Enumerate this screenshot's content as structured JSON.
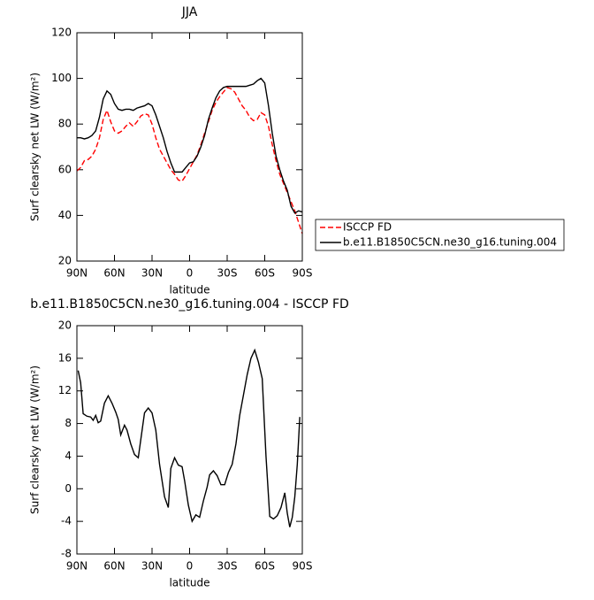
{
  "chart_data": [
    {
      "type": "line",
      "title": "JJA",
      "xlabel": "latitude",
      "ylabel": "Surf clearsky net LW (W/m²)",
      "xlim": [
        90,
        -90
      ],
      "xticks": [
        {
          "value": 90,
          "label": "90N"
        },
        {
          "value": 60,
          "label": "60N"
        },
        {
          "value": 30,
          "label": "30N"
        },
        0,
        {
          "value": -30,
          "label": "30S"
        },
        {
          "value": -60,
          "label": "60S"
        },
        {
          "value": -90,
          "label": "90S"
        }
      ],
      "ylim": [
        20,
        120
      ],
      "yticks": [
        20,
        40,
        60,
        80,
        100,
        120
      ],
      "legend": "right",
      "x": [
        90,
        87,
        84,
        81,
        78,
        75,
        72,
        69,
        66,
        63,
        60,
        57,
        54,
        51,
        48,
        45,
        42,
        39,
        36,
        33,
        30,
        27,
        24,
        21,
        18,
        15,
        12,
        9,
        6,
        3,
        0,
        -3,
        -6,
        -9,
        -12,
        -15,
        -18,
        -21,
        -24,
        -27,
        -30,
        -33,
        -36,
        -39,
        -42,
        -45,
        -48,
        -51,
        -54,
        -57,
        -60,
        -63,
        -66,
        -69,
        -72,
        -75,
        -78,
        -81,
        -84,
        -87,
        -90
      ],
      "series": [
        {
          "name": "ISCCP FD",
          "color": "#ff0000",
          "style": "dashed",
          "values": [
            59.5,
            61,
            64,
            64.5,
            66,
            69,
            74,
            82,
            86,
            81,
            77,
            76,
            77,
            79,
            80.5,
            79,
            81,
            83.5,
            84.5,
            84,
            80,
            74,
            69,
            66,
            63,
            60,
            58,
            55.5,
            55,
            57.5,
            60.5,
            63.5,
            66.5,
            71,
            76,
            81,
            86,
            89.5,
            92,
            94,
            96,
            95.5,
            94,
            91,
            88,
            86,
            83,
            81.5,
            82,
            85,
            84,
            79,
            71,
            64,
            58,
            54,
            50,
            46,
            42,
            37,
            32
          ]
        },
        {
          "name": "b.e11.B1850C5CN.ne30_g16.tuning.004",
          "color": "#000000",
          "style": "solid",
          "values": [
            74,
            74,
            73.5,
            74,
            75,
            77,
            83,
            91,
            94.5,
            93,
            89,
            86.5,
            86,
            86.5,
            86.5,
            86,
            87,
            87.5,
            88,
            89,
            88,
            84,
            79,
            74,
            68,
            63,
            59,
            59,
            59,
            61,
            63,
            63.5,
            66,
            70,
            75,
            82,
            87,
            91.5,
            94.5,
            96,
            96.5,
            96.5,
            96.5,
            96.5,
            96.5,
            96.5,
            97,
            97.5,
            99,
            100,
            98,
            88,
            76,
            66,
            60,
            55,
            51,
            44,
            41,
            42,
            41.5
          ]
        }
      ]
    },
    {
      "type": "line",
      "title": "b.e11.B1850C5CN.ne30_g16.tuning.004 - ISCCP FD",
      "xlabel": "latitude",
      "ylabel": "Surf clearsky net LW (W/m²)",
      "xlim": [
        90,
        -90
      ],
      "xticks": [
        {
          "value": 90,
          "label": "90N"
        },
        {
          "value": 60,
          "label": "60N"
        },
        {
          "value": 30,
          "label": "30N"
        },
        0,
        {
          "value": -30,
          "label": "30S"
        },
        {
          "value": -60,
          "label": "60S"
        },
        {
          "value": -90,
          "label": "90S"
        }
      ],
      "ylim": [
        -8,
        20
      ],
      "yticks": [
        -8,
        -4,
        0,
        4,
        8,
        12,
        16,
        20
      ],
      "x": [
        89,
        87,
        85,
        82,
        79,
        77,
        75,
        73,
        71,
        68,
        65,
        62,
        59,
        57,
        55,
        52,
        50,
        47,
        44,
        41,
        39,
        36,
        33,
        30,
        27,
        24,
        20,
        17,
        15,
        12,
        9,
        6,
        4,
        1,
        -2,
        -5,
        -8,
        -11,
        -14,
        -16,
        -19,
        -22,
        -25,
        -28,
        -31,
        -34,
        -37,
        -40,
        -43,
        -46,
        -49,
        -52,
        -55,
        -58,
        -61,
        -64,
        -67,
        -70,
        -73,
        -76,
        -78,
        -80,
        -82,
        -84,
        -86,
        -88
      ],
      "series": [
        {
          "color": "#000000",
          "style": "solid",
          "values": [
            14.5,
            13,
            9.2,
            8.9,
            8.8,
            8.4,
            9,
            8.1,
            8.3,
            10.5,
            11.4,
            10.5,
            9.4,
            8.5,
            6.6,
            7.8,
            7.2,
            5.5,
            4.2,
            3.8,
            6,
            9.3,
            9.9,
            9.3,
            7.2,
            3,
            -1,
            -2.3,
            2.5,
            3.8,
            2.9,
            2.7,
            1,
            -2,
            -4,
            -3.2,
            -3.5,
            -1.5,
            0.2,
            1.7,
            2.2,
            1.6,
            0.5,
            0.5,
            2,
            3,
            5.5,
            9,
            11.5,
            14,
            16,
            17,
            15.5,
            13.5,
            4,
            -3.4,
            -3.7,
            -3.3,
            -2.3,
            -0.5,
            -3,
            -4.7,
            -3.5,
            -1,
            3,
            8.8
          ]
        }
      ]
    }
  ]
}
